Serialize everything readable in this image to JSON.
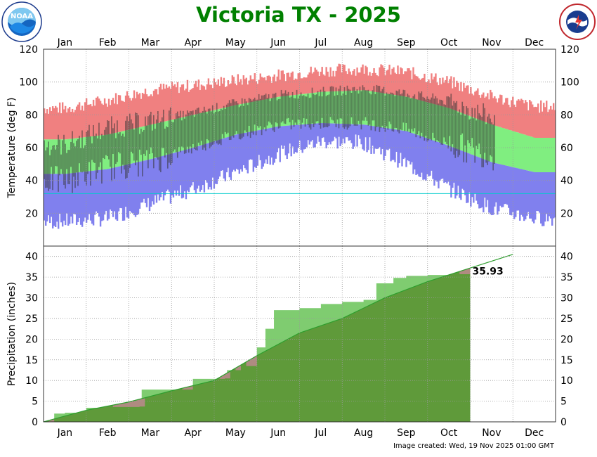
{
  "header": {
    "title": "Victoria TX - 2025",
    "left_logo": "NOAA",
    "left_logo_ring_text": "NATIONAL OCEANIC AND ATMOSPHERIC ADMINISTRATION · U.S. DEPARTMENT OF COMMERCE",
    "right_logo_ring_text": "NATIONAL WEATHER SERVICE"
  },
  "footer": {
    "created": "Image created: Wed, 19 Nov 2025 01:00 GMT"
  },
  "colors": {
    "title": "#008000",
    "record_range": "#f08080",
    "normal_range": "#80ee80",
    "record_low_range": "#8080ee",
    "observed_bar": "#333333",
    "freezing_line": "#00cccc",
    "precip_observed": "#5f9a3a",
    "precip_normal_area": "#7fcc70",
    "precip_normal_line": "#2e9e2e",
    "precip_above_normal": "#b88a8a"
  },
  "chart_data": [
    {
      "type": "bar",
      "title": "",
      "xlabel": "",
      "ylabel": "Temperature (deg F)",
      "months": [
        "Jan",
        "Feb",
        "Mar",
        "Apr",
        "May",
        "Jun",
        "Jul",
        "Aug",
        "Sep",
        "Oct",
        "Nov",
        "Dec"
      ],
      "ylim": [
        0,
        120
      ],
      "yticks": [
        20,
        40,
        60,
        80,
        100,
        120
      ],
      "freezing_line": 32,
      "grid": true,
      "series": [
        {
          "values_by_month": {
            "normal_high": [
              65,
              68,
              74,
              80,
              86,
              91,
              94,
              95,
              91,
              84,
              74,
              66
            ],
            "normal_low": [
              44,
              47,
              53,
              60,
              68,
              73,
              75,
              74,
              70,
              61,
              51,
              45
            ],
            "record_high": [
              84,
              89,
              95,
              98,
              101,
              104,
              107,
              108,
              106,
              100,
              91,
              85
            ],
            "record_low": [
              15,
              17,
              26,
              35,
              45,
              56,
              64,
              63,
              50,
              35,
              23,
              17
            ]
          }
        },
        {
          "observed_through": "Nov 18",
          "values_by_month": {
            "obs_high_avg": [
              62,
              72,
              76,
              81,
              87,
              92,
              94,
              96,
              93,
              88,
              78
            ],
            "obs_low_avg": [
              40,
              48,
              52,
              60,
              68,
              74,
              75,
              75,
              71,
              62,
              55
            ]
          }
        }
      ]
    },
    {
      "type": "area",
      "title": "",
      "xlabel": "",
      "ylabel": "Precipitation (inches)",
      "months": [
        "Jan",
        "Feb",
        "Mar",
        "Apr",
        "May",
        "Jun",
        "Jul",
        "Aug",
        "Sep",
        "Oct",
        "Nov",
        "Dec"
      ],
      "ylim": [
        0,
        42.5
      ],
      "yticks": [
        0,
        5,
        10,
        15,
        20,
        25,
        30,
        35,
        40
      ],
      "grid": true,
      "annotation": "35.93",
      "series": [
        {
          "points": [
            [
              0,
              0
            ],
            [
              1,
              2.8
            ],
            [
              2,
              4.8
            ],
            [
              3,
              7.5
            ],
            [
              4,
              10
            ],
            [
              5,
              16
            ],
            [
              6,
              21.5
            ],
            [
              7,
              25
            ],
            [
              8,
              30
            ],
            [
              9,
              33.9
            ],
            [
              10,
              37.2
            ],
            [
              11,
              40.5
            ]
          ]
        },
        {
          "points": [
            [
              0,
              0
            ],
            [
              0.25,
              2.0
            ],
            [
              0.5,
              2.2
            ],
            [
              1,
              3.4
            ],
            [
              1.5,
              3.6
            ],
            [
              2.2,
              3.7
            ],
            [
              2.3,
              7.8
            ],
            [
              3.5,
              10.4
            ],
            [
              4.2,
              10.5
            ],
            [
              4.3,
              12.5
            ],
            [
              4.6,
              13.5
            ],
            [
              4.9,
              14.5
            ],
            [
              5.0,
              18.0
            ],
            [
              5.2,
              22.5
            ],
            [
              5.4,
              27.0
            ],
            [
              6.0,
              27.5
            ],
            [
              6.5,
              28.5
            ],
            [
              7.0,
              29.0
            ],
            [
              7.5,
              29.5
            ],
            [
              7.8,
              33.5
            ],
            [
              8.2,
              34.8
            ],
            [
              8.5,
              35.3
            ],
            [
              9.0,
              35.5
            ],
            [
              9.5,
              35.7
            ],
            [
              10.0,
              35.93
            ]
          ]
        }
      ]
    }
  ]
}
